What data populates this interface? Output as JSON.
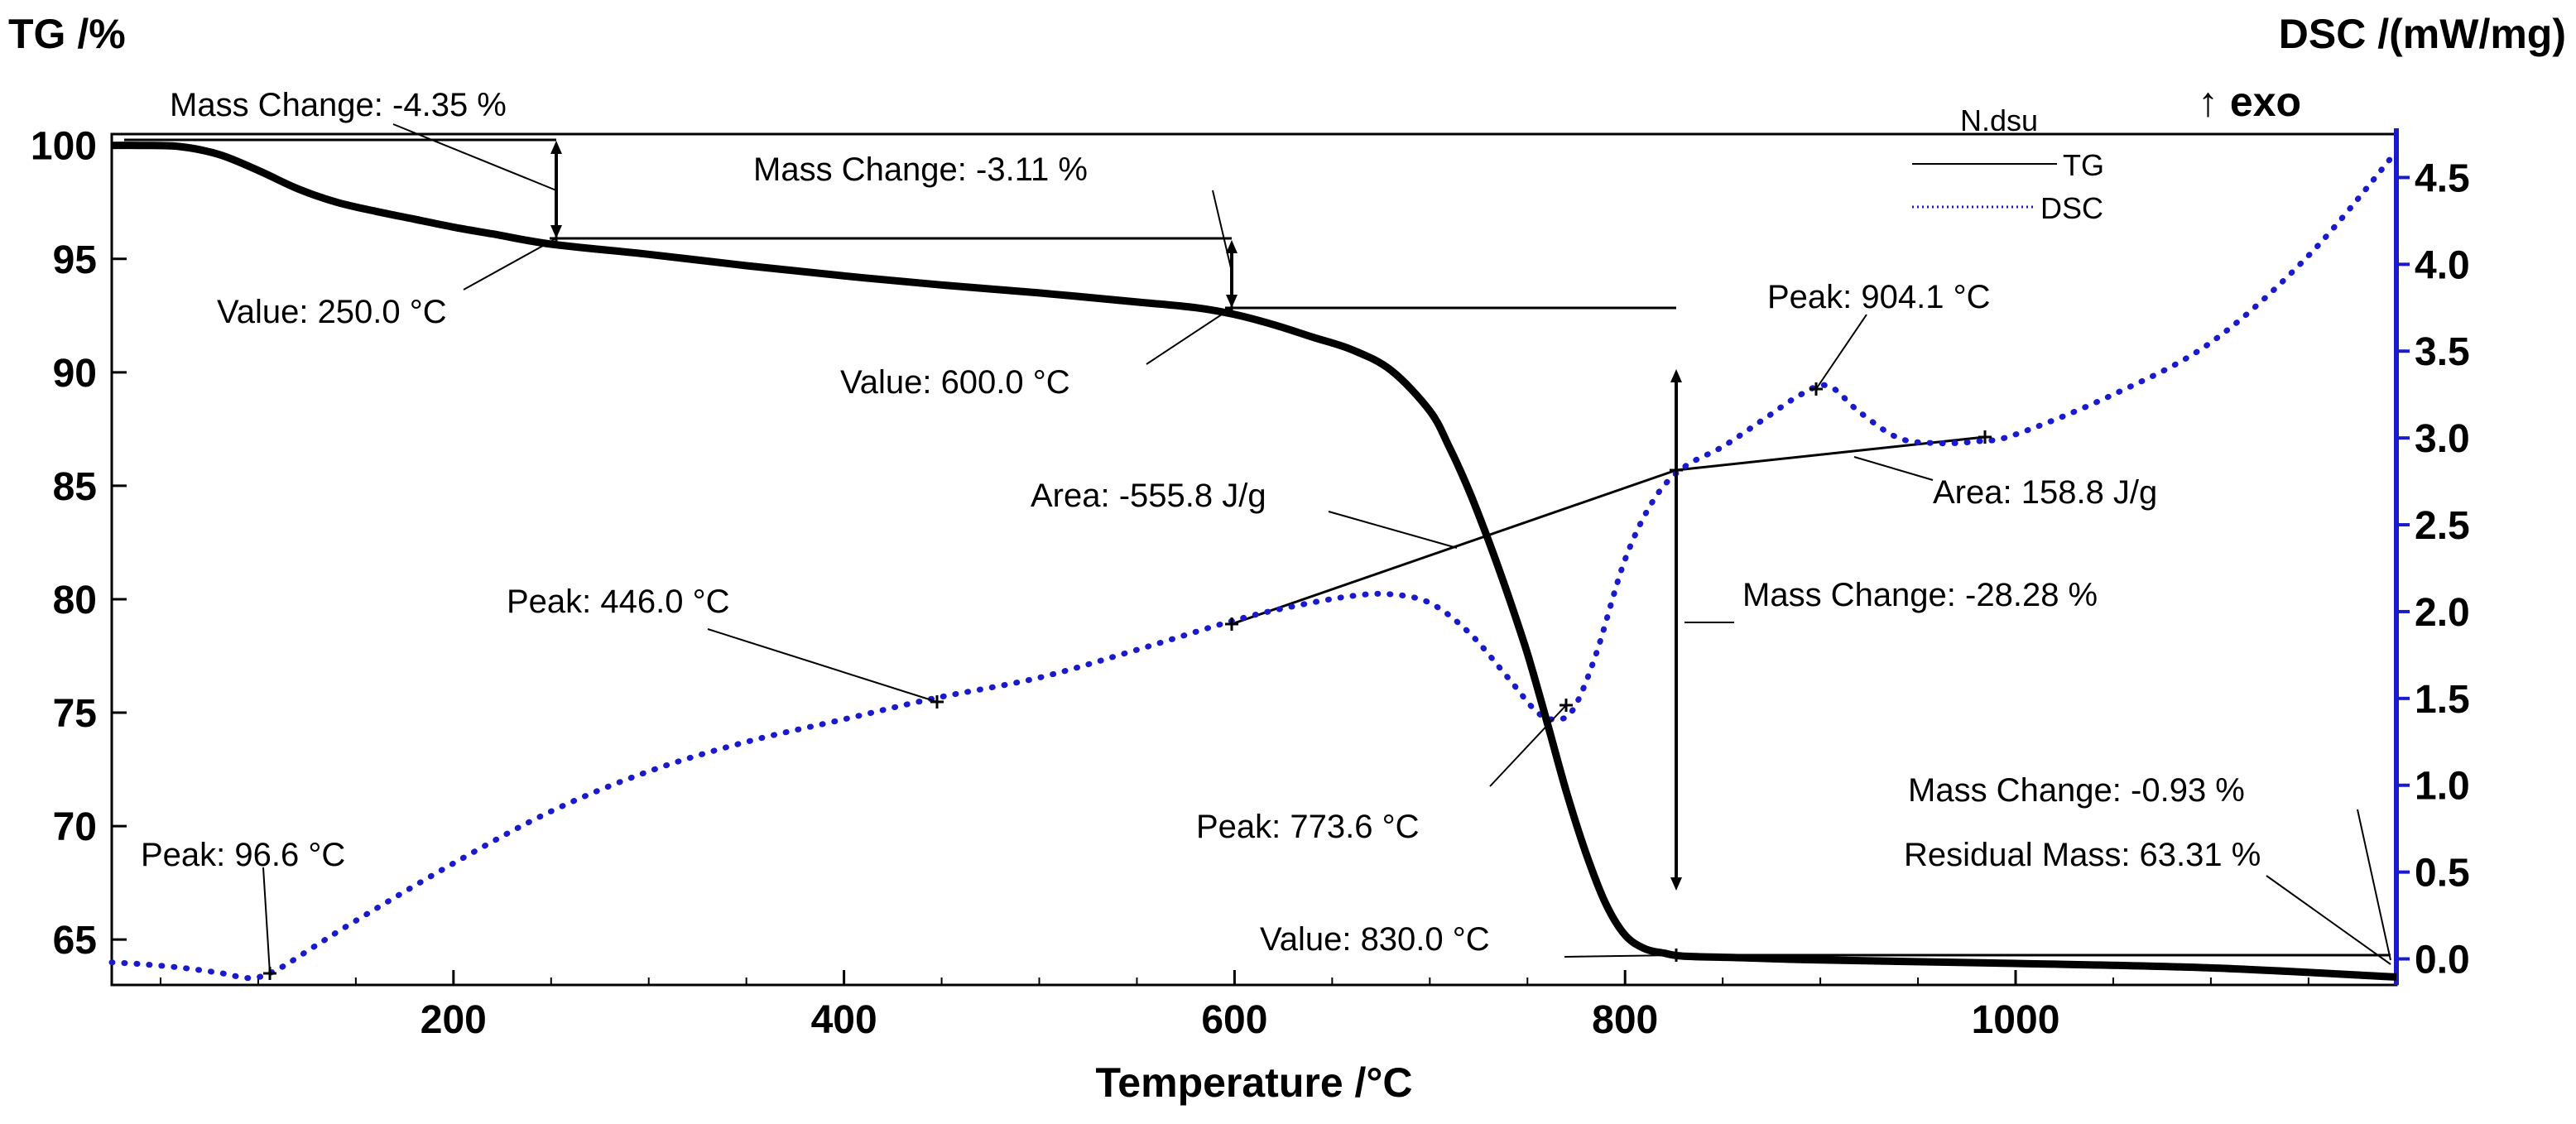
{
  "chart_data": {
    "type": "line",
    "title": "",
    "xlabel": "Temperature /°C",
    "ylabel_left": "TG /%",
    "ylabel_right": "DSC /(mW/mg)",
    "exo_label": "↑ exo",
    "xlim": [
      25,
      1195
    ],
    "ylim_left": [
      63,
      100.5
    ],
    "ylim_right": [
      -0.15,
      4.75
    ],
    "x_ticks": [
      200,
      400,
      600,
      800,
      1000
    ],
    "y_left_ticks": [
      65,
      70,
      75,
      80,
      85,
      90,
      95,
      100
    ],
    "y_right_ticks": [
      0.0,
      0.5,
      1.0,
      1.5,
      2.0,
      2.5,
      3.0,
      3.5,
      4.0,
      4.5
    ],
    "y_left_tick_labels": [
      "65",
      "70",
      "75",
      "80",
      "85",
      "90",
      "95",
      "100"
    ],
    "y_right_tick_labels": [
      "0.0",
      "0.5",
      "1.0",
      "1.5",
      "2.0",
      "2.5",
      "3.0",
      "3.5",
      "4.0",
      "4.5"
    ],
    "colors": {
      "tg": "#000000",
      "dsc": "#1a1acc",
      "right_axis": "#1a1acc"
    },
    "legend": {
      "title": "N.dsu",
      "items": [
        "TG",
        "DSC"
      ],
      "position": "top-right"
    },
    "series": [
      {
        "name": "TG",
        "axis": "left",
        "style": "solid",
        "x": [
          25,
          40,
          60,
          80,
          100,
          120,
          140,
          160,
          180,
          200,
          220,
          250,
          300,
          350,
          400,
          450,
          500,
          550,
          580,
          600,
          620,
          640,
          660,
          680,
          700,
          710,
          720,
          730,
          740,
          750,
          760,
          770,
          780,
          790,
          800,
          810,
          820,
          830,
          860,
          900,
          1000,
          1100,
          1195
        ],
        "y": [
          100.0,
          100.0,
          99.95,
          99.6,
          98.9,
          98.1,
          97.5,
          97.1,
          96.75,
          96.4,
          96.1,
          95.65,
          95.2,
          94.7,
          94.25,
          93.85,
          93.5,
          93.1,
          92.85,
          92.55,
          92.1,
          91.55,
          91.0,
          90.1,
          88.3,
          86.7,
          84.8,
          82.6,
          80.2,
          77.6,
          74.6,
          71.5,
          68.8,
          66.6,
          65.2,
          64.6,
          64.4,
          64.27,
          64.2,
          64.1,
          63.95,
          63.75,
          63.35
        ]
      },
      {
        "name": "DSC",
        "axis": "right",
        "style": "dotted",
        "x": [
          25,
          40,
          60,
          80,
          96.6,
          110,
          130,
          150,
          200,
          250,
          300,
          350,
          400,
          446,
          500,
          550,
          600,
          630,
          660,
          680,
          700,
          720,
          740,
          755,
          765,
          773.6,
          785,
          800,
          815,
          830,
          850,
          870,
          890,
          904.1,
          920,
          940,
          960,
          980,
          1000,
          1050,
          1100,
          1150,
          1195
        ],
        "y": [
          -0.02,
          -0.03,
          -0.05,
          -0.08,
          -0.11,
          -0.06,
          0.08,
          0.22,
          0.55,
          0.85,
          1.08,
          1.25,
          1.38,
          1.5,
          1.62,
          1.78,
          1.95,
          2.03,
          2.09,
          2.1,
          2.05,
          1.88,
          1.62,
          1.42,
          1.38,
          1.44,
          1.75,
          2.3,
          2.65,
          2.83,
          2.95,
          3.1,
          3.25,
          3.3,
          3.15,
          3.0,
          2.97,
          2.98,
          3.02,
          3.25,
          3.55,
          4.05,
          4.65
        ]
      }
    ],
    "annotations": {
      "mass_change_1": "Mass Change: -4.35 %",
      "mass_change_2": "Mass Change: -3.11 %",
      "mass_change_3": "Mass Change: -28.28 %",
      "mass_change_4": "Mass Change: -0.93 %",
      "residual_mass": "Residual Mass: 63.31 %",
      "value_250": "Value: 250.0 °C",
      "value_600": "Value: 600.0 °C",
      "value_830": "Value: 830.0 °C",
      "peak_96": "Peak: 96.6 °C",
      "peak_446": "Peak: 446.0 °C",
      "peak_773": "Peak: 773.6 °C",
      "peak_904": "Peak: 904.1 °C",
      "area_neg": "Area: -555.8 J/g",
      "area_pos": "Area: 158.8 J/g"
    }
  }
}
